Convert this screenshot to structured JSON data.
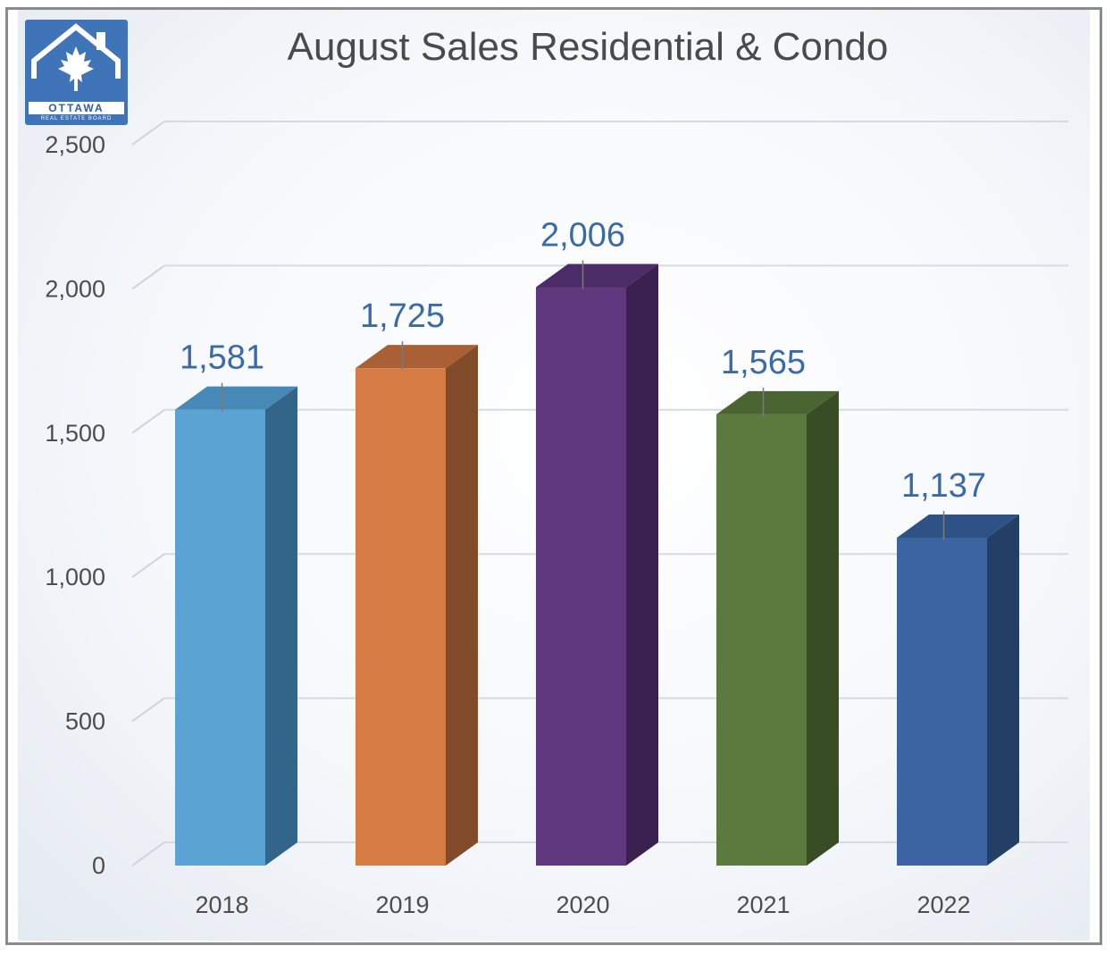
{
  "chart_data": {
    "type": "bar",
    "title": "August Sales Residential & Condo",
    "categories": [
      "2018",
      "2019",
      "2020",
      "2021",
      "2022"
    ],
    "values": [
      1581,
      1725,
      2006,
      1565,
      1137
    ],
    "data_labels": [
      "1,581",
      "1,725",
      "2,006",
      "1,565",
      "1,137"
    ],
    "ylim": [
      0,
      2500
    ],
    "yticks": [
      "0",
      "500",
      "1,000",
      "1,500",
      "2,000",
      "2,500"
    ],
    "yticks_values": [
      0,
      500,
      1000,
      1500,
      2000,
      2500
    ],
    "bar_colors": [
      {
        "front": "#5aa3d2",
        "side": "#33658a",
        "top": "#4689b6"
      },
      {
        "front": "#d47c44",
        "side": "#824c2a",
        "top": "#a86034"
      },
      {
        "front": "#5f387d",
        "side": "#3a2150",
        "top": "#4c2c66"
      },
      {
        "front": "#5b7a3e",
        "side": "#384c26",
        "top": "#4b6532"
      },
      {
        "front": "#3b64a0",
        "side": "#233f66",
        "top": "#2f5286"
      }
    ],
    "grid": true,
    "legend": "none",
    "style": "3d-column"
  },
  "logo": {
    "icon": "maple-leaf-house-icon",
    "text": "OTTAWA",
    "subtext": "REAL ESTATE BOARD",
    "color": "#3f74b8"
  }
}
